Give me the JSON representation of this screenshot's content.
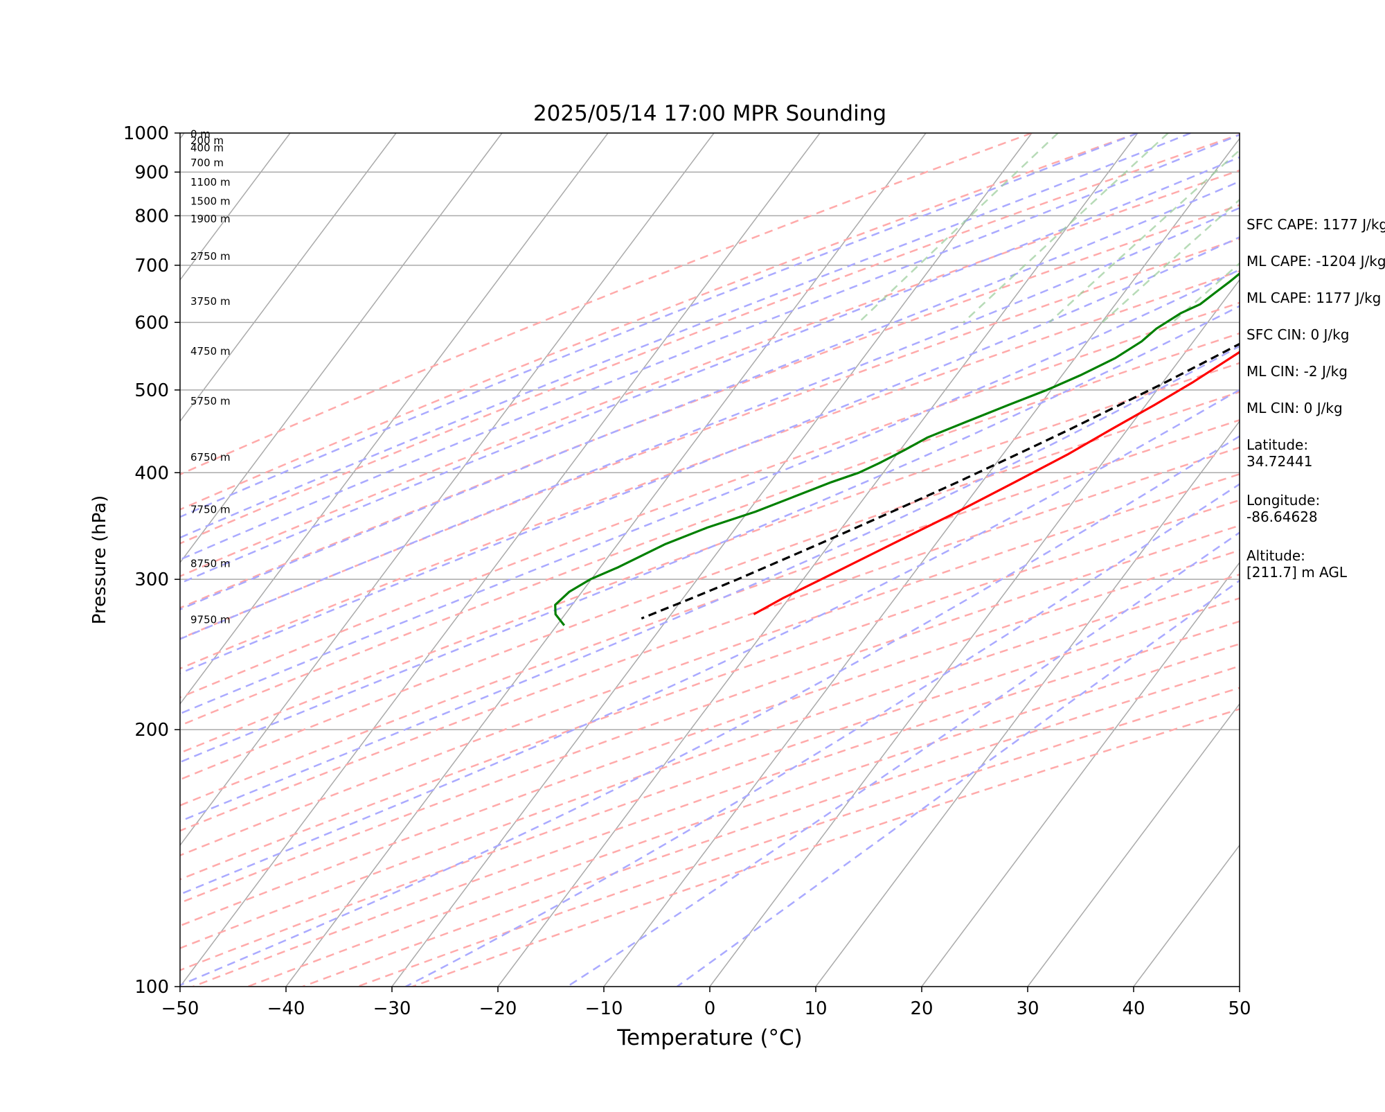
{
  "chart_data": {
    "type": "line",
    "title": "2025/05/14 17:00 MPR Sounding",
    "xlabel": "Temperature (°C)",
    "ylabel": "Pressure (hPa)",
    "xlim": [
      -50,
      50
    ],
    "ylim": [
      1000,
      100
    ],
    "y_scale": "log",
    "skew_t": true,
    "grid": true,
    "x_ticks": [
      -50,
      -40,
      -30,
      -20,
      -10,
      0,
      10,
      20,
      30,
      40,
      50
    ],
    "y_ticks": [
      100,
      200,
      300,
      400,
      500,
      600,
      700,
      800,
      900,
      1000
    ],
    "x_tick_labels": [
      "−50",
      "−40",
      "−30",
      "−20",
      "−10",
      "0",
      "10",
      "20",
      "30",
      "40",
      "50"
    ],
    "y_tick_labels": [
      "100",
      "200",
      "300",
      "400",
      "500",
      "600",
      "700",
      "800",
      "900",
      "1000"
    ],
    "series": [
      {
        "color": "#ff0000",
        "style": "solid",
        "points": [
          [
            1000,
            27
          ],
          [
            995,
            25.8
          ],
          [
            980,
            23.2
          ],
          [
            960,
            21.3
          ],
          [
            930,
            19.3
          ],
          [
            900,
            18.1
          ],
          [
            870,
            16.8
          ],
          [
            830,
            15.3
          ],
          [
            800,
            14.3
          ],
          [
            770,
            13.4
          ],
          [
            740,
            12.4
          ],
          [
            710,
            11.5
          ],
          [
            690,
            10.9
          ],
          [
            660,
            9.8
          ],
          [
            630,
            8.6
          ],
          [
            600,
            7.4
          ],
          [
            570,
            5.9
          ],
          [
            540,
            4.4
          ],
          [
            510,
            2.8
          ],
          [
            480,
            0.8
          ],
          [
            450,
            -1.5
          ],
          [
            420,
            -3.9
          ],
          [
            390,
            -6.9
          ],
          [
            360,
            -10.2
          ],
          [
            330,
            -14.1
          ],
          [
            300,
            -18.3
          ],
          [
            285,
            -20.6
          ],
          [
            273,
            -22.2
          ]
        ]
      },
      {
        "color": "#008000",
        "style": "solid",
        "points": [
          [
            1000,
            18.3
          ],
          [
            995,
            16.2
          ],
          [
            985,
            14.8
          ],
          [
            975,
            13.2
          ],
          [
            960,
            11
          ],
          [
            945,
            10.3
          ],
          [
            930,
            10.6
          ],
          [
            915,
            10
          ],
          [
            895,
            9.5
          ],
          [
            875,
            7.7
          ],
          [
            855,
            6.5
          ],
          [
            845,
            5.9
          ],
          [
            830,
            4.9
          ],
          [
            815,
            4.4
          ],
          [
            800,
            3.6
          ],
          [
            785,
            2.8
          ],
          [
            770,
            2.4
          ],
          [
            760,
            1.8
          ],
          [
            740,
            0.8
          ],
          [
            720,
            0.7
          ],
          [
            705,
            -0.1
          ],
          [
            690,
            -0.3
          ],
          [
            670,
            -0.8
          ],
          [
            650,
            -1.4
          ],
          [
            630,
            -2
          ],
          [
            615,
            -3.2
          ],
          [
            590,
            -4.4
          ],
          [
            570,
            -4.9
          ],
          [
            545,
            -6.2
          ],
          [
            520,
            -8.3
          ],
          [
            500,
            -10.4
          ],
          [
            480,
            -13
          ],
          [
            460,
            -15.6
          ],
          [
            440,
            -18.3
          ],
          [
            425,
            -19.6
          ],
          [
            410,
            -21.1
          ],
          [
            400,
            -22.3
          ],
          [
            390,
            -24.2
          ],
          [
            375,
            -26.7
          ],
          [
            360,
            -29.3
          ],
          [
            345,
            -32.7
          ],
          [
            330,
            -35.5
          ],
          [
            310,
            -38.3
          ],
          [
            300,
            -40.1
          ],
          [
            290,
            -41.2
          ],
          [
            280,
            -41.6
          ],
          [
            273,
            -40.9
          ],
          [
            265,
            -39.3
          ]
        ]
      },
      {
        "color": "#000000",
        "style": "dashed",
        "points": [
          [
            1000,
            27
          ],
          [
            960,
            24.7
          ],
          [
            930,
            22.8
          ],
          [
            900,
            21.2
          ],
          [
            870,
            20.6
          ],
          [
            840,
            19.9
          ],
          [
            810,
            18.5
          ],
          [
            780,
            17.2
          ],
          [
            750,
            15.6
          ],
          [
            720,
            14
          ],
          [
            690,
            12.3
          ],
          [
            660,
            10.6
          ],
          [
            630,
            8.8
          ],
          [
            600,
            6.9
          ],
          [
            570,
            4.8
          ],
          [
            540,
            2.6
          ],
          [
            510,
            0.2
          ],
          [
            480,
            -2.5
          ],
          [
            450,
            -5.4
          ],
          [
            420,
            -8.7
          ],
          [
            390,
            -12.3
          ],
          [
            360,
            -16.4
          ],
          [
            330,
            -21
          ],
          [
            300,
            -26.2
          ],
          [
            285,
            -29.2
          ],
          [
            270,
            -32.5
          ]
        ]
      }
    ],
    "height_labels": [
      {
        "p": 997,
        "text": "0 m"
      },
      {
        "p": 980,
        "text": "200 m"
      },
      {
        "p": 961,
        "text": "400 m"
      },
      {
        "p": 923,
        "text": "700 m"
      },
      {
        "p": 876,
        "text": "1100 m"
      },
      {
        "p": 832,
        "text": "1500 m"
      },
      {
        "p": 793,
        "text": "1900 m"
      },
      {
        "p": 717,
        "text": "2750 m"
      },
      {
        "p": 635,
        "text": "3750 m"
      },
      {
        "p": 555,
        "text": "4750 m"
      },
      {
        "p": 485,
        "text": "5750 m"
      },
      {
        "p": 417,
        "text": "6750 m"
      },
      {
        "p": 362,
        "text": "7750 m"
      },
      {
        "p": 313,
        "text": "8750 m"
      },
      {
        "p": 269,
        "text": "9750 m"
      }
    ],
    "background_lines": {
      "isotherm_color": "#aaaaaa",
      "dry_adiabat_color": "#ffaaaa",
      "moist_adiabat_color": "#aaaaff",
      "mixing_ratio_color": "#99cc99"
    }
  },
  "stats": {
    "sfc_cape": "SFC CAPE: 1177 J/kg",
    "ml_cape_1": "ML CAPE: -1204 J/kg",
    "ml_cape_2": "ML CAPE: 1177 J/kg",
    "sfc_cin": "SFC CIN: 0 J/kg",
    "ml_cin_1": "ML CIN: -2 J/kg",
    "ml_cin_2": "ML CIN: 0 J/kg",
    "latitude_label": "Latitude:",
    "latitude_value": "34.72441",
    "longitude_label": "Longitude:",
    "longitude_value": "-86.64628",
    "altitude_label": "Altitude:",
    "altitude_value": "[211.7] m AGL"
  }
}
